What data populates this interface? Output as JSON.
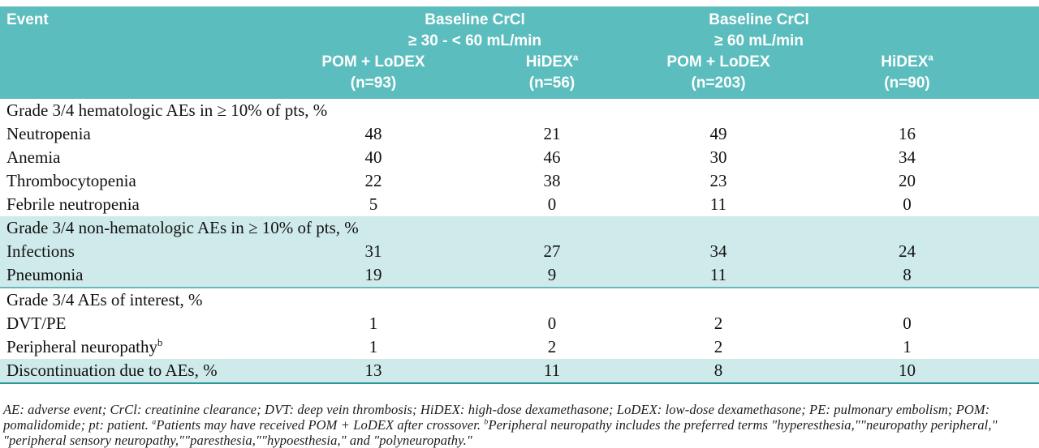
{
  "header": {
    "event_label": "Event",
    "groups": [
      {
        "line1": "Baseline CrCl",
        "line2": "≥ 30 - < 60 mL/min"
      },
      {
        "line1": "Baseline CrCl",
        "line2": "≥ 60 mL/min"
      }
    ],
    "columns": [
      {
        "name": "POM + LoDEX",
        "sup": "",
        "n": "(n=93)"
      },
      {
        "name": "HiDEX",
        "sup": "a",
        "n": "(n=56)"
      },
      {
        "name": "POM + LoDEX",
        "sup": "",
        "n": "(n=203)"
      },
      {
        "name": "HiDEX",
        "sup": "a",
        "n": "(n=90)"
      }
    ]
  },
  "sections": [
    {
      "shaded": false,
      "bottom_rule": "",
      "header": "Grade 3/4 hematologic AEs in ≥ 10% of pts, %",
      "rows": [
        {
          "label": "Neutropenia",
          "sup": "",
          "values": [
            "48",
            "21",
            "49",
            "16"
          ]
        },
        {
          "label": "Anemia",
          "sup": "",
          "values": [
            "40",
            "46",
            "30",
            "34"
          ]
        },
        {
          "label": "Thrombocytopenia",
          "sup": "",
          "values": [
            "22",
            "38",
            "23",
            "20"
          ]
        },
        {
          "label": "Febrile neutropenia",
          "sup": "",
          "values": [
            "5",
            "0",
            "11",
            "0"
          ]
        }
      ]
    },
    {
      "shaded": true,
      "bottom_rule": "medium",
      "header": "Grade 3/4 non-hematologic AEs in ≥ 10% of pts, %",
      "rows": [
        {
          "label": "Infections",
          "sup": "",
          "values": [
            "31",
            "27",
            "34",
            "24"
          ]
        },
        {
          "label": "Pneumonia",
          "sup": "",
          "values": [
            "19",
            "9",
            "11",
            "8"
          ]
        }
      ]
    },
    {
      "shaded": false,
      "bottom_rule": "",
      "header": "Grade 3/4 AEs of interest, %",
      "rows": [
        {
          "label": "DVT/PE",
          "sup": "",
          "values": [
            "1",
            "0",
            "2",
            "0"
          ]
        },
        {
          "label": "Peripheral neuropathy",
          "sup": "b",
          "values": [
            "1",
            "2",
            "2",
            "1"
          ]
        }
      ]
    },
    {
      "shaded": true,
      "bottom_rule": "dark",
      "header": "",
      "rows": [
        {
          "label": "Discontinuation due to AEs, %",
          "sup": "",
          "values": [
            "13",
            "11",
            "8",
            "10"
          ]
        }
      ]
    }
  ],
  "footnote": {
    "segments": [
      {
        "text": "AE: adverse event; CrCl: creatinine clearance; DVT: deep vein thrombosis; HiDEX: high-dose dexamethasone; LoDEX: low-dose dexamethasone; PE: pulmonary embolism; POM: pomalidomide; pt: patient. "
      },
      {
        "sup": "a"
      },
      {
        "text": "Patients may have received POM + LoDEX after crossover. "
      },
      {
        "sup": "b"
      },
      {
        "text": "Peripheral neuropathy includes the preferred terms \"hyperesthesia,\"\"neuropathy peripheral,\" \"peripheral sensory neuropathy,\"\"paresthesia,\"\"hypoesthesia,\" and \"polyneuropathy.\""
      }
    ]
  },
  "colors": {
    "header_teal": "#5cbdbe",
    "shaded_band": "#cfeaea",
    "rule_medium": "#6ab8b9",
    "rule_dark": "#2e989a",
    "header_text": "#ffffff",
    "body_text": "#121212"
  }
}
